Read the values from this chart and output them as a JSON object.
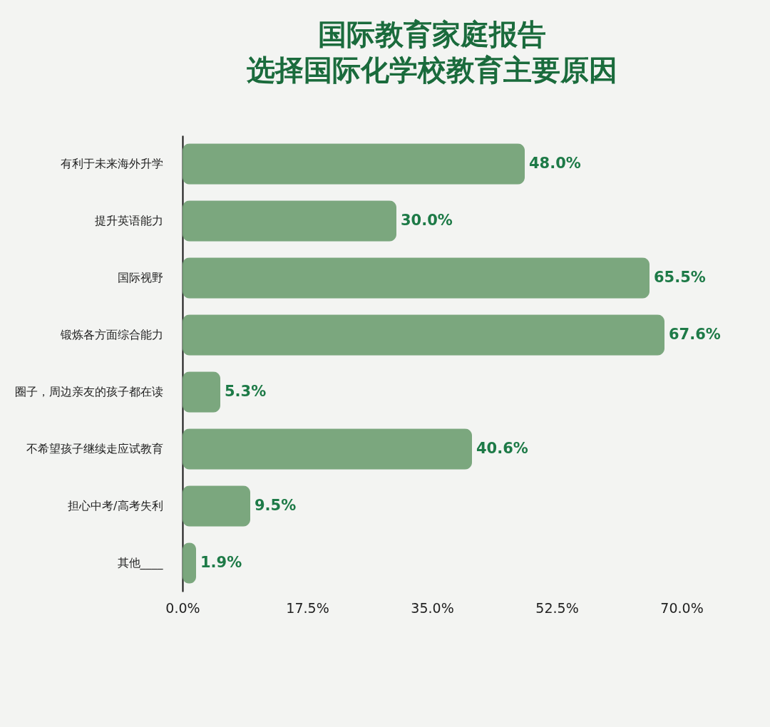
{
  "chart_data": {
    "type": "bar",
    "orientation": "horizontal",
    "title": "国际教育家庭报告",
    "subtitle": "选择国际化学校教育主要原因",
    "categories": [
      "有利于未来海外升学",
      "提升英语能力",
      "国际视野",
      "锻炼各方面综合能力",
      "圈子，周边亲友的孩子都在读",
      "不希望孩子继续走应试教育",
      "担心中考/高考失利",
      "其他____"
    ],
    "values": [
      48.0,
      30.0,
      65.5,
      67.6,
      5.3,
      40.6,
      9.5,
      1.9
    ],
    "value_labels": [
      "48.0%",
      "30.0%",
      "65.5%",
      "67.6%",
      "5.3%",
      "40.6%",
      "9.5%",
      "1.9%"
    ],
    "color": "#74a277",
    "xlim": [
      0,
      70
    ],
    "xticks": [
      {
        "value": 0,
        "label": "0.0%"
      },
      {
        "value": 17.5,
        "label": "17.5%"
      },
      {
        "value": 35,
        "label": "35.0%"
      },
      {
        "value": 52.5,
        "label": "52.5%"
      },
      {
        "value": 70,
        "label": "70.0%"
      }
    ],
    "grid": false
  }
}
